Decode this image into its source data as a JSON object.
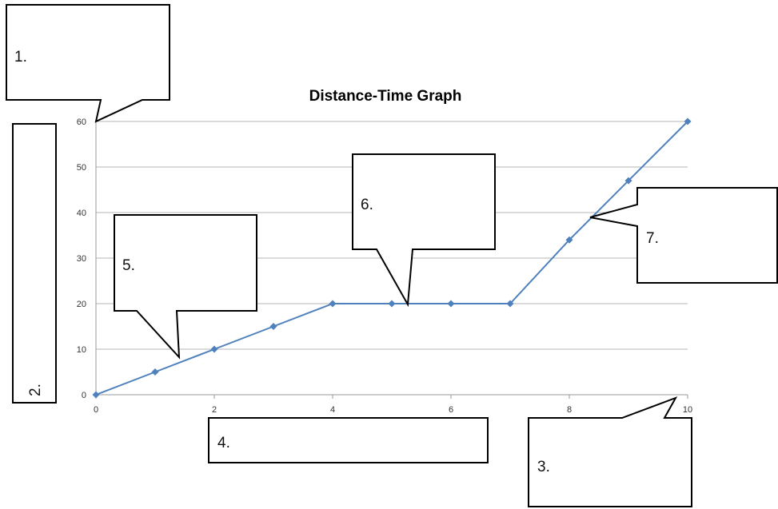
{
  "chart_data": {
    "type": "line",
    "title": "Distance-Time Graph",
    "xlim": [
      0,
      10
    ],
    "ylim": [
      0,
      60
    ],
    "x_ticks": [
      0,
      2,
      4,
      6,
      8,
      10
    ],
    "y_ticks": [
      0,
      10,
      20,
      30,
      40,
      50,
      60
    ],
    "grid": true,
    "series": [
      {
        "points": [
          {
            "x": 0,
            "y": 0
          },
          {
            "x": 1,
            "y": 5
          },
          {
            "x": 2,
            "y": 10
          },
          {
            "x": 3,
            "y": 15
          },
          {
            "x": 4,
            "y": 20
          },
          {
            "x": 5,
            "y": 20
          },
          {
            "x": 6,
            "y": 20
          },
          {
            "x": 7,
            "y": 20
          },
          {
            "x": 8,
            "y": 34
          },
          {
            "x": 9,
            "y": 47
          },
          {
            "x": 10,
            "y": 60
          }
        ]
      }
    ],
    "colors": {
      "series": "#4f81bd",
      "grid": "#b5b5b5"
    }
  },
  "annotations": {
    "callout_1": "1.",
    "callout_2": "2.",
    "callout_3": "3.",
    "callout_4": "4.",
    "callout_5": "5.",
    "callout_6": "6.",
    "callout_7": "7."
  }
}
